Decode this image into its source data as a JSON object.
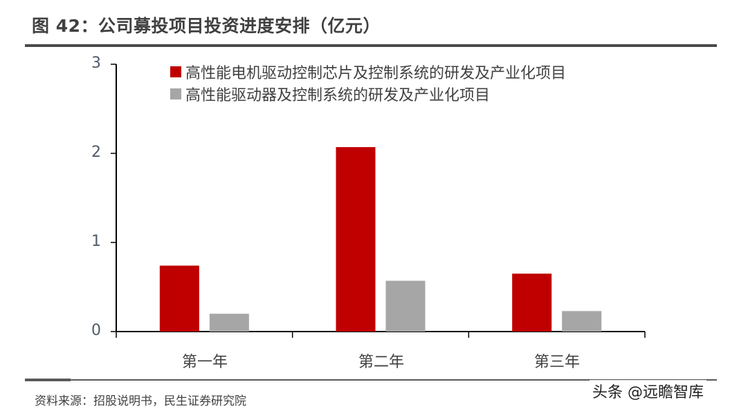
{
  "title": "图 42：公司募投项目投资进度安排（亿元）",
  "source": "资料来源：招股说明书，民生证券研究院",
  "watermark": "头条 @远瞻智库",
  "colors": {
    "series1": "#C00000",
    "series2": "#A6A6A6",
    "axis": "#000000",
    "title_rule": "#4a4a4a"
  },
  "legend": [
    {
      "label": "高性能电机驱动控制芯片及控制系统的研发及产业化项目",
      "color": "#C00000"
    },
    {
      "label": "高性能驱动器及控制系统的研发及产业化项目",
      "color": "#A6A6A6"
    }
  ],
  "yaxis": {
    "ticks": [
      "0",
      "1",
      "2",
      "3"
    ]
  },
  "xaxis": {
    "categories": [
      "第一年",
      "第二年",
      "第三年"
    ]
  },
  "chart_data": {
    "type": "bar",
    "title": "图 42：公司募投项目投资进度安排（亿元）",
    "categories": [
      "第一年",
      "第二年",
      "第三年"
    ],
    "series": [
      {
        "name": "高性能电机驱动控制芯片及控制系统的研发及产业化项目",
        "values": [
          0.74,
          2.07,
          0.65
        ],
        "color": "#C00000"
      },
      {
        "name": "高性能驱动器及控制系统的研发及产业化项目",
        "values": [
          0.2,
          0.57,
          0.23
        ],
        "color": "#A6A6A6"
      }
    ],
    "xlabel": "",
    "ylabel": "亿元",
    "ylim": [
      0,
      3
    ],
    "yticks": [
      0,
      1,
      2,
      3
    ],
    "grid": false,
    "legend_position": "top-inside"
  }
}
